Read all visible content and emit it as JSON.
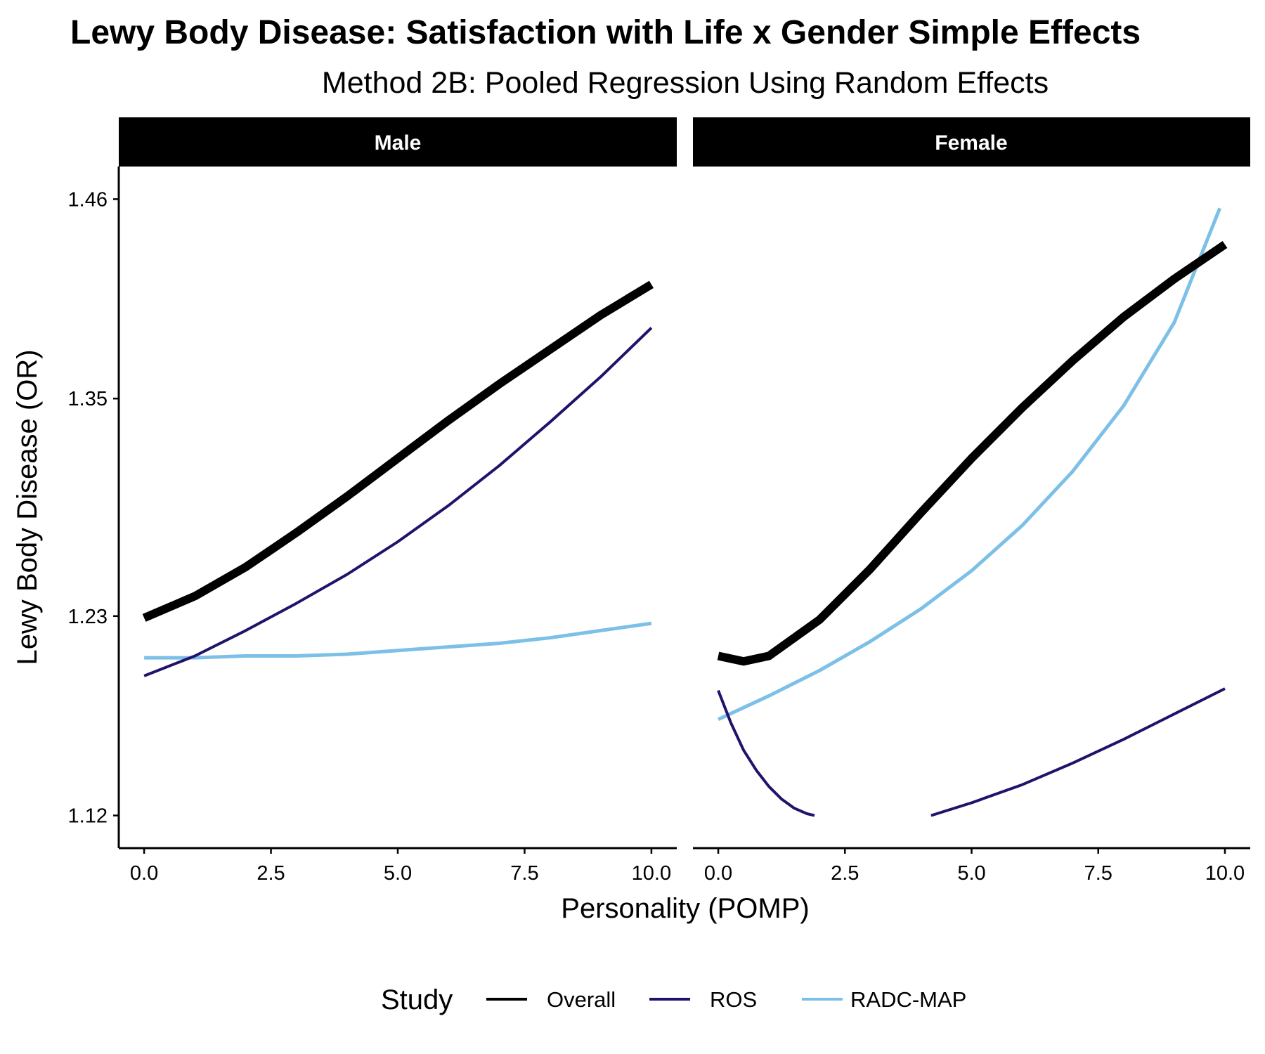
{
  "chart_data": {
    "type": "line",
    "title": "Lewy Body Disease: Satisfaction with Life x Gender Simple Effects",
    "subtitle": "Method 2B: Pooled Regression Using Random Effects",
    "xlabel": "Personality (POMP)",
    "ylabel": "Lewy Body Disease (OR)",
    "xlim": [
      -0.5,
      10.5
    ],
    "ylim": [
      1.102,
      1.478
    ],
    "x_ticks": [
      0.0,
      2.5,
      5.0,
      7.5,
      10.0
    ],
    "x_tick_labels": [
      "0.0",
      "2.5",
      "5.0",
      "7.5",
      "10.0"
    ],
    "y_ticks": [
      1.12,
      1.23,
      1.35,
      1.46
    ],
    "y_tick_labels": [
      "1.12",
      "1.23",
      "1.35",
      "1.46"
    ],
    "legend": {
      "title": "Study",
      "position": "bottom",
      "entries": [
        "Overall",
        "ROS",
        "RADC-MAP"
      ]
    },
    "colors": {
      "Overall": "#000000",
      "ROS": "#21126a",
      "RADC-MAP": "#7dc0e7"
    },
    "panels": [
      {
        "label": "Male",
        "series": [
          {
            "name": "Overall",
            "x": [
              0,
              1,
              2,
              3,
              4,
              5,
              6,
              7,
              8,
              9,
              10
            ],
            "values": [
              1.229,
              1.241,
              1.257,
              1.276,
              1.296,
              1.317,
              1.338,
              1.358,
              1.377,
              1.396,
              1.413
            ]
          },
          {
            "name": "ROS",
            "x": [
              0,
              1,
              2,
              3,
              4,
              5,
              6,
              7,
              8,
              9,
              10
            ],
            "values": [
              1.197,
              1.208,
              1.222,
              1.237,
              1.253,
              1.271,
              1.291,
              1.313,
              1.337,
              1.362,
              1.389
            ]
          },
          {
            "name": "RADC-MAP",
            "x": [
              0,
              1,
              2,
              3,
              4,
              5,
              6,
              7,
              8,
              9,
              10
            ],
            "values": [
              1.207,
              1.207,
              1.208,
              1.208,
              1.209,
              1.211,
              1.213,
              1.215,
              1.218,
              1.222,
              1.226
            ]
          }
        ]
      },
      {
        "label": "Female",
        "series": [
          {
            "name": "Overall",
            "x": [
              0,
              0.5,
              1,
              2,
              3,
              4,
              5,
              6,
              7,
              8,
              9,
              10
            ],
            "values": [
              1.208,
              1.205,
              1.208,
              1.228,
              1.256,
              1.287,
              1.317,
              1.345,
              1.371,
              1.395,
              1.416,
              1.435
            ]
          },
          {
            "name": "ROS",
            "x": [
              0,
              0.25,
              0.5,
              0.75,
              1.0,
              1.25,
              1.5,
              1.75,
              1.9
            ],
            "values": [
              1.189,
              1.171,
              1.156,
              1.145,
              1.136,
              1.129,
              1.124,
              1.121,
              1.12
            ]
          },
          {
            "name": "ROS",
            "x": [
              4.2,
              5,
              6,
              7,
              8,
              9,
              10
            ],
            "values": [
              1.12,
              1.127,
              1.137,
              1.149,
              1.162,
              1.176,
              1.19
            ]
          },
          {
            "name": "RADC-MAP",
            "x": [
              0,
              1,
              2,
              3,
              4,
              5,
              6,
              7,
              8,
              9,
              9.9
            ],
            "values": [
              1.173,
              1.186,
              1.2,
              1.216,
              1.234,
              1.255,
              1.28,
              1.31,
              1.346,
              1.392,
              1.455
            ]
          }
        ]
      }
    ]
  }
}
